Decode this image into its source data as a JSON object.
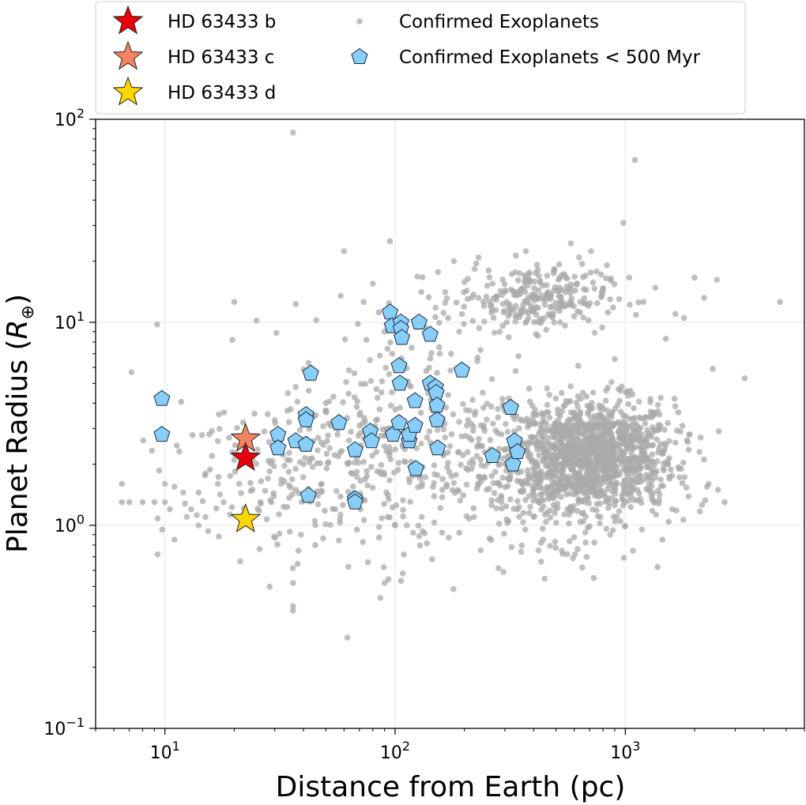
{
  "chart_data": {
    "type": "scatter",
    "title": "",
    "xlabel": "Distance from Earth (pc)",
    "ylabel_main": "Planet Radius (",
    "ylabel_symbol": "R",
    "ylabel_sub": "⊕",
    "ylabel_close": ")",
    "xscale": "log",
    "yscale": "log",
    "xlim": [
      5,
      6000
    ],
    "ylim": [
      0.1,
      100
    ],
    "grid": true,
    "legend_position": "top",
    "x_ticks": [
      {
        "value": 10,
        "base": "10",
        "exp": "1"
      },
      {
        "value": 100,
        "base": "10",
        "exp": "2"
      },
      {
        "value": 1000,
        "base": "10",
        "exp": "3"
      }
    ],
    "y_ticks": [
      {
        "value": 0.1,
        "base": "10",
        "exp": "−1"
      },
      {
        "value": 1,
        "base": "10",
        "exp": "0"
      },
      {
        "value": 10,
        "base": "10",
        "exp": "1"
      },
      {
        "value": 100,
        "base": "10",
        "exp": "2"
      }
    ],
    "colors": {
      "confirmed": "#a9a9a9",
      "young": "#87cefa",
      "b": "#e8000b",
      "c": "#f4845f",
      "d": "#ffd700"
    },
    "legend": [
      {
        "label": "HD 63433 b",
        "marker": "star",
        "color": "#e8000b"
      },
      {
        "label": "HD 63433 c",
        "marker": "star",
        "color": "#f4845f"
      },
      {
        "label": "HD 63433 d",
        "marker": "star",
        "color": "#ffd700"
      },
      {
        "label": "Confirmed Exoplanets",
        "marker": "dot",
        "color": "#a9a9a9"
      },
      {
        "label": "Confirmed Exoplanets < 500 Myr",
        "marker": "pentagon",
        "color": "#87cefa"
      }
    ],
    "series": [
      {
        "name": "HD 63433 b",
        "marker": "star",
        "points": [
          [
            22.4,
            2.15
          ]
        ]
      },
      {
        "name": "HD 63433 c",
        "marker": "star",
        "points": [
          [
            22.4,
            2.67
          ]
        ]
      },
      {
        "name": "HD 63433 d",
        "marker": "star",
        "points": [
          [
            22.4,
            1.07
          ]
        ]
      },
      {
        "name": "Confirmed Exoplanets < 500 Myr",
        "marker": "pentagon",
        "points": [
          [
            9.7,
            4.2
          ],
          [
            9.7,
            2.8
          ],
          [
            31,
            2.8
          ],
          [
            31,
            2.4
          ],
          [
            37,
            2.6
          ],
          [
            41,
            3.5
          ],
          [
            41,
            3.3
          ],
          [
            41,
            2.5
          ],
          [
            42,
            1.4
          ],
          [
            43,
            5.6
          ],
          [
            57,
            3.2
          ],
          [
            67,
            2.35
          ],
          [
            67,
            1.35
          ],
          [
            67,
            1.3
          ],
          [
            78,
            2.9
          ],
          [
            79,
            2.6
          ],
          [
            95,
            11.2
          ],
          [
            97,
            9.6
          ],
          [
            98,
            2.8
          ],
          [
            104,
            3.2
          ],
          [
            104,
            6.1
          ],
          [
            105,
            5.0
          ],
          [
            106,
            10.0
          ],
          [
            106,
            9.3
          ],
          [
            107,
            8.4
          ],
          [
            115,
            2.6
          ],
          [
            115,
            2.8
          ],
          [
            122,
            3.1
          ],
          [
            122,
            4.1
          ],
          [
            123,
            1.9
          ],
          [
            127,
            10.0
          ],
          [
            142,
            8.7
          ],
          [
            142,
            5.0
          ],
          [
            150,
            4.8
          ],
          [
            151,
            4.5
          ],
          [
            152,
            3.9
          ],
          [
            152,
            3.3
          ],
          [
            153,
            2.4
          ],
          [
            195,
            5.8
          ],
          [
            265,
            2.2
          ],
          [
            318,
            3.8
          ],
          [
            325,
            2.0
          ],
          [
            330,
            2.6
          ],
          [
            340,
            2.3
          ]
        ]
      },
      {
        "name": "Confirmed Exoplanets",
        "marker": "dot",
        "points": [
          [
            6.5,
            1.6
          ],
          [
            6.5,
            1.3
          ],
          [
            7,
            1.3
          ],
          [
            8,
            1.3
          ],
          [
            9,
            1.3
          ],
          [
            9.3,
            0.72
          ],
          [
            10,
            1.6
          ],
          [
            10,
            1.3
          ],
          [
            10.5,
            1.2
          ],
          [
            11,
            0.85
          ],
          [
            11,
            1.55
          ],
          [
            12,
            1.45
          ],
          [
            13,
            1.2
          ],
          [
            14,
            1.0
          ],
          [
            14,
            1.45
          ],
          [
            15,
            1.1
          ],
          [
            15,
            1.8
          ],
          [
            16,
            2.2
          ],
          [
            17,
            1.6
          ],
          [
            17,
            2.6
          ],
          [
            18,
            1.3
          ],
          [
            19,
            2.7
          ],
          [
            20,
            12.6
          ],
          [
            20,
            2.1
          ],
          [
            21,
            1.6
          ],
          [
            24,
            1.5
          ],
          [
            24,
            2.1
          ],
          [
            25,
            10.2
          ],
          [
            26,
            1.3
          ],
          [
            27,
            2.9
          ],
          [
            28,
            1.7
          ],
          [
            29,
            1.3
          ],
          [
            30,
            3.3
          ],
          [
            32,
            1.6
          ],
          [
            34,
            2.1
          ],
          [
            36,
            86
          ],
          [
            36,
            0.52
          ],
          [
            36,
            0.4
          ],
          [
            36,
            0.38
          ],
          [
            37,
            12.3
          ],
          [
            37,
            4.8
          ],
          [
            37,
            1.9
          ],
          [
            38,
            0.75
          ],
          [
            39,
            0.9
          ],
          [
            40,
            2.0
          ],
          [
            42,
            6.3
          ],
          [
            45,
            0.8
          ],
          [
            48,
            1.6
          ],
          [
            50,
            4.0
          ],
          [
            52,
            2.4
          ],
          [
            55,
            1.2
          ],
          [
            58,
            13.5
          ],
          [
            60,
            22.4
          ],
          [
            62,
            0.28
          ],
          [
            63,
            5.8
          ],
          [
            65,
            1.8
          ],
          [
            70,
            3.5
          ],
          [
            73,
            12.6
          ],
          [
            75,
            8.2
          ],
          [
            80,
            15.5
          ],
          [
            83,
            2.3
          ],
          [
            85,
            11.2
          ],
          [
            90,
            0.52
          ],
          [
            90,
            9.0
          ],
          [
            93,
            1.1
          ],
          [
            95,
            25.1
          ],
          [
            97,
            7.0
          ],
          [
            100,
            1.0
          ],
          [
            103,
            5.2
          ],
          [
            105,
            3.8
          ],
          [
            108,
            0.58
          ],
          [
            115,
            1.7
          ],
          [
            118,
            7.5
          ],
          [
            125,
            16.8
          ],
          [
            130,
            14.1
          ],
          [
            135,
            9.5
          ],
          [
            140,
            13.3
          ],
          [
            145,
            0.68
          ],
          [
            150,
            11.8
          ],
          [
            158,
            3.2
          ],
          [
            165,
            14.1
          ],
          [
            170,
            10.5
          ],
          [
            175,
            7.0
          ],
          [
            180,
            20.0
          ],
          [
            185,
            12.5
          ],
          [
            190,
            9.0
          ],
          [
            200,
            15.8
          ],
          [
            205,
            3.1
          ],
          [
            210,
            2.7
          ],
          [
            215,
            1.9
          ],
          [
            220,
            1.1
          ],
          [
            225,
            19.5
          ],
          [
            230,
            13.2
          ],
          [
            235,
            7.3
          ],
          [
            240,
            4.5
          ],
          [
            245,
            2.3
          ],
          [
            250,
            1.5
          ],
          [
            260,
            12.0
          ],
          [
            265,
            15.5
          ],
          [
            270,
            8.9
          ],
          [
            280,
            3.4
          ],
          [
            285,
            2.0
          ],
          [
            290,
            1.3
          ],
          [
            300,
            14.1
          ],
          [
            305,
            10.0
          ],
          [
            310,
            1.7
          ],
          [
            320,
            11.7
          ],
          [
            330,
            2.9
          ],
          [
            340,
            1.2
          ],
          [
            350,
            13.8
          ],
          [
            360,
            1.5
          ],
          [
            370,
            22.4
          ],
          [
            380,
            16.2
          ],
          [
            390,
            12.0
          ],
          [
            400,
            1.1
          ],
          [
            410,
            2.5
          ],
          [
            420,
            14.4
          ],
          [
            430,
            1.8
          ],
          [
            440,
            0.85
          ],
          [
            450,
            12.9
          ],
          [
            460,
            2.7
          ],
          [
            470,
            1.4
          ],
          [
            480,
            12.0
          ],
          [
            490,
            2.1
          ],
          [
            500,
            3.0
          ],
          [
            510,
            1.6
          ],
          [
            520,
            16.6
          ],
          [
            530,
            0.75
          ],
          [
            540,
            2.3
          ],
          [
            550,
            14.1
          ],
          [
            560,
            1.2
          ],
          [
            570,
            2.8
          ],
          [
            580,
            24.5
          ],
          [
            590,
            1.9
          ],
          [
            600,
            10.7
          ],
          [
            610,
            2.4
          ],
          [
            620,
            1.5
          ],
          [
            630,
            20.9
          ],
          [
            640,
            3.2
          ],
          [
            650,
            0.62
          ],
          [
            660,
            2.0
          ],
          [
            670,
            1.3
          ],
          [
            680,
            12.3
          ],
          [
            690,
            2.6
          ],
          [
            700,
            1.7
          ],
          [
            710,
            22.4
          ],
          [
            720,
            2.9
          ],
          [
            730,
            0.55
          ],
          [
            740,
            1.4
          ],
          [
            750,
            17.8
          ],
          [
            760,
            2.2
          ],
          [
            770,
            3.9
          ],
          [
            780,
            1.1
          ],
          [
            790,
            13.5
          ],
          [
            800,
            2.5
          ],
          [
            820,
            1.9
          ],
          [
            840,
            11.2
          ],
          [
            860,
            0.9
          ],
          [
            880,
            2.7
          ],
          [
            900,
            6.6
          ],
          [
            920,
            1.6
          ],
          [
            940,
            13.0
          ],
          [
            960,
            3.1
          ],
          [
            980,
            30.9
          ],
          [
            1000,
            1.3
          ],
          [
            1020,
            2.4
          ],
          [
            1040,
            16.6
          ],
          [
            1060,
            1.8
          ],
          [
            1080,
            0.75
          ],
          [
            1100,
            63.1
          ],
          [
            1150,
            3.4
          ],
          [
            1200,
            12.6
          ],
          [
            1250,
            2.1
          ],
          [
            1300,
            1.4
          ],
          [
            1350,
            14.8
          ],
          [
            1400,
            3.0
          ],
          [
            1450,
            0.85
          ],
          [
            1500,
            8.3
          ],
          [
            1550,
            2.6
          ],
          [
            1600,
            1.2
          ],
          [
            1650,
            11.0
          ],
          [
            1700,
            3.6
          ],
          [
            1750,
            1.9
          ],
          [
            1800,
            10.5
          ],
          [
            1900,
            2.8
          ],
          [
            2000,
            16.6
          ],
          [
            2100,
            2.3
          ],
          [
            2200,
            13.2
          ],
          [
            2300,
            1.6
          ],
          [
            2400,
            5.9
          ],
          [
            2500,
            16.2
          ],
          [
            2700,
            1.3
          ],
          [
            3300,
            5.3
          ],
          [
            4700,
            12.6
          ]
        ]
      }
    ]
  }
}
